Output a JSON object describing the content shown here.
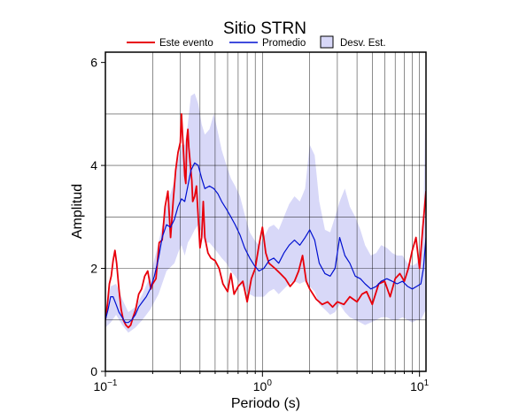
{
  "chart_data": {
    "type": "line",
    "title": "Sitio STRN",
    "xlabel": "Periodo (s)",
    "ylabel": "Amplitud",
    "xscale": "log",
    "xlim": [
      0.1,
      11
    ],
    "ylim": [
      0,
      6.2
    ],
    "x_ticks": [
      {
        "value": 0.1,
        "base": "10",
        "exp": "−1"
      },
      {
        "value": 1,
        "base": "10",
        "exp": "0"
      },
      {
        "value": 10,
        "base": "10",
        "exp": "1"
      }
    ],
    "y_ticks": [
      0,
      2,
      4,
      6
    ],
    "y_gridlines": [
      1,
      2,
      3,
      4,
      5
    ],
    "grid": true,
    "legend_position": "top",
    "colors": {
      "este_evento": "#e8000b",
      "promedio": "#0010d0",
      "desv_fill": "#d8d8f8",
      "desv_edge": "#000000"
    },
    "legend": {
      "este_evento": "Este evento",
      "promedio": "Promedio",
      "desv": "Desv. Est."
    },
    "series": [
      {
        "name": "Este evento",
        "key": "este_evento",
        "x": [
          0.1,
          0.103,
          0.106,
          0.109,
          0.112,
          0.115,
          0.118,
          0.122,
          0.126,
          0.13,
          0.135,
          0.14,
          0.145,
          0.15,
          0.156,
          0.163,
          0.17,
          0.178,
          0.186,
          0.195,
          0.2,
          0.21,
          0.22,
          0.23,
          0.24,
          0.25,
          0.26,
          0.27,
          0.28,
          0.29,
          0.3,
          0.305,
          0.31,
          0.315,
          0.32,
          0.325,
          0.33,
          0.335,
          0.34,
          0.35,
          0.355,
          0.36,
          0.37,
          0.38,
          0.39,
          0.4,
          0.41,
          0.42,
          0.43,
          0.45,
          0.47,
          0.5,
          0.53,
          0.56,
          0.6,
          0.63,
          0.66,
          0.7,
          0.75,
          0.8,
          0.85,
          0.9,
          0.95,
          1.0,
          1.05,
          1.1,
          1.2,
          1.3,
          1.4,
          1.5,
          1.6,
          1.7,
          1.8,
          1.9,
          2.0,
          2.2,
          2.4,
          2.6,
          2.8,
          3.0,
          3.3,
          3.6,
          4.0,
          4.3,
          4.6,
          5.0,
          5.5,
          6.0,
          6.5,
          7.0,
          7.5,
          8.0,
          8.5,
          9.0,
          9.5,
          10.0,
          10.5,
          11.0
        ],
        "values": [
          1.0,
          1.3,
          1.7,
          1.85,
          2.15,
          2.35,
          2.1,
          1.6,
          1.2,
          1.0,
          0.9,
          0.85,
          0.9,
          1.05,
          1.2,
          1.5,
          1.6,
          1.85,
          1.95,
          1.6,
          1.7,
          1.8,
          2.5,
          2.55,
          3.2,
          3.5,
          2.6,
          3.3,
          3.9,
          4.25,
          4.45,
          5.0,
          4.6,
          4.2,
          3.8,
          3.65,
          4.5,
          4.7,
          4.35,
          3.9,
          3.7,
          3.3,
          3.4,
          3.6,
          3.0,
          2.4,
          2.6,
          3.3,
          2.6,
          2.3,
          2.2,
          2.15,
          2.0,
          1.7,
          1.55,
          1.9,
          1.5,
          1.65,
          1.75,
          1.35,
          1.8,
          2.0,
          2.45,
          2.8,
          2.3,
          2.1,
          2.0,
          1.9,
          1.8,
          1.65,
          1.75,
          1.95,
          2.25,
          1.75,
          1.6,
          1.4,
          1.3,
          1.35,
          1.25,
          1.35,
          1.3,
          1.45,
          1.35,
          1.5,
          1.55,
          1.3,
          1.7,
          1.75,
          1.45,
          1.8,
          1.9,
          1.75,
          2.0,
          2.35,
          2.6,
          2.0,
          2.8,
          3.5
        ]
      },
      {
        "name": "Promedio",
        "key": "promedio",
        "x": [
          0.1,
          0.104,
          0.108,
          0.112,
          0.117,
          0.122,
          0.128,
          0.134,
          0.14,
          0.147,
          0.155,
          0.163,
          0.172,
          0.182,
          0.193,
          0.205,
          0.218,
          0.23,
          0.245,
          0.26,
          0.275,
          0.29,
          0.305,
          0.32,
          0.335,
          0.35,
          0.37,
          0.39,
          0.41,
          0.43,
          0.46,
          0.49,
          0.52,
          0.55,
          0.59,
          0.63,
          0.67,
          0.72,
          0.77,
          0.83,
          0.89,
          0.95,
          1.02,
          1.1,
          1.18,
          1.27,
          1.37,
          1.48,
          1.6,
          1.73,
          1.87,
          2.0,
          2.15,
          2.3,
          2.5,
          2.7,
          2.9,
          3.1,
          3.35,
          3.6,
          3.9,
          4.2,
          4.5,
          4.9,
          5.3,
          5.7,
          6.2,
          6.7,
          7.2,
          7.8,
          8.4,
          9.0,
          9.6,
          10.2,
          10.6,
          11.0
        ],
        "values": [
          1.0,
          1.2,
          1.45,
          1.45,
          1.3,
          1.15,
          1.05,
          0.95,
          0.95,
          1.0,
          1.1,
          1.25,
          1.35,
          1.45,
          1.6,
          1.85,
          2.2,
          2.6,
          2.85,
          2.8,
          2.95,
          3.2,
          3.35,
          3.3,
          3.6,
          3.9,
          4.05,
          4.0,
          3.75,
          3.55,
          3.6,
          3.55,
          3.45,
          3.3,
          3.15,
          3.0,
          2.85,
          2.65,
          2.4,
          2.2,
          2.05,
          1.95,
          2.0,
          2.15,
          2.2,
          2.1,
          2.3,
          2.45,
          2.55,
          2.45,
          2.6,
          2.75,
          2.55,
          2.1,
          1.9,
          1.85,
          2.0,
          2.6,
          2.25,
          2.1,
          1.85,
          1.8,
          1.7,
          1.6,
          1.65,
          1.75,
          1.8,
          1.75,
          1.7,
          1.75,
          1.65,
          1.6,
          1.65,
          1.7,
          2.0,
          2.6
        ]
      }
    ],
    "band": {
      "name": "Desv. Est.",
      "x": [
        0.1,
        0.108,
        0.117,
        0.128,
        0.14,
        0.155,
        0.172,
        0.193,
        0.218,
        0.245,
        0.275,
        0.29,
        0.305,
        0.32,
        0.335,
        0.35,
        0.37,
        0.39,
        0.41,
        0.43,
        0.46,
        0.49,
        0.52,
        0.55,
        0.59,
        0.63,
        0.67,
        0.72,
        0.77,
        0.83,
        0.89,
        0.95,
        1.02,
        1.1,
        1.18,
        1.27,
        1.37,
        1.48,
        1.6,
        1.73,
        1.87,
        2.0,
        2.15,
        2.3,
        2.5,
        2.7,
        2.9,
        3.1,
        3.35,
        3.6,
        3.9,
        4.2,
        4.5,
        4.9,
        5.3,
        5.7,
        6.2,
        6.7,
        7.2,
        7.8,
        8.4,
        9.0,
        9.6,
        10.2,
        10.6,
        11.0
      ],
      "upper": [
        1.2,
        1.65,
        1.7,
        1.4,
        1.15,
        1.25,
        1.5,
        1.85,
        2.5,
        3.2,
        3.7,
        4.1,
        4.4,
        4.4,
        4.8,
        5.35,
        5.4,
        5.2,
        4.8,
        4.6,
        4.7,
        5.0,
        4.65,
        4.3,
        4.0,
        3.75,
        3.6,
        3.4,
        3.05,
        2.7,
        2.55,
        2.45,
        2.6,
        2.8,
        2.85,
        2.75,
        3.0,
        3.25,
        3.4,
        3.3,
        3.55,
        4.4,
        4.2,
        3.3,
        2.75,
        2.7,
        3.0,
        3.3,
        3.55,
        3.2,
        3.0,
        2.75,
        2.45,
        2.25,
        2.3,
        2.45,
        2.4,
        2.3,
        2.25,
        2.25,
        2.1,
        2.05,
        2.1,
        2.3,
        2.9,
        6.0
      ],
      "lower": [
        0.85,
        0.95,
        1.1,
        0.9,
        0.75,
        0.85,
        1.0,
        1.2,
        1.5,
        1.95,
        2.1,
        2.3,
        2.45,
        2.25,
        2.5,
        2.6,
        2.75,
        2.85,
        2.7,
        2.5,
        2.5,
        2.4,
        2.3,
        2.2,
        2.1,
        1.95,
        1.85,
        1.7,
        1.6,
        1.5,
        1.45,
        1.45,
        1.45,
        1.55,
        1.6,
        1.5,
        1.6,
        1.7,
        1.75,
        1.7,
        1.75,
        1.65,
        1.55,
        1.3,
        1.2,
        1.1,
        1.15,
        1.3,
        1.15,
        1.05,
        1.0,
        0.95,
        0.9,
        0.95,
        1.0,
        1.05,
        1.05,
        1.0,
        1.0,
        1.05,
        1.0,
        0.95,
        1.0,
        1.0,
        1.1,
        1.2
      ]
    }
  }
}
